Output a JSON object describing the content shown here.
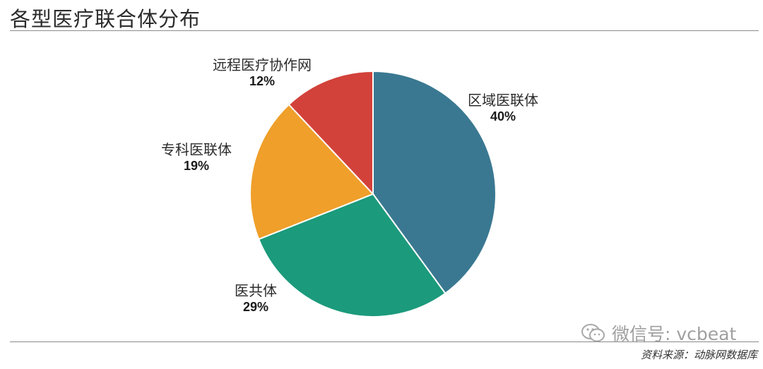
{
  "header": {
    "title": "各型医疗联合体分布"
  },
  "chart_data": {
    "type": "pie",
    "title": "各型医疗联合体分布",
    "slices": [
      {
        "name": "区域医联体",
        "value": 40,
        "label": "40%",
        "color": "#3a7891"
      },
      {
        "name": "医共体",
        "value": 29,
        "label": "29%",
        "color": "#1b9a7c"
      },
      {
        "name": "专科医联体",
        "value": 19,
        "label": "19%",
        "color": "#ef9f2a"
      },
      {
        "name": "远程医疗协作网",
        "value": 12,
        "label": "12%",
        "color": "#d2423a"
      }
    ],
    "start_angle_deg": 0,
    "direction": "clockwise",
    "slice_border_color": "#ffffff"
  },
  "watermark": {
    "text": "微信号: vcbeat",
    "icon": "wechat-icon"
  },
  "footer": {
    "source": "资料来源：动脉网数据库"
  }
}
